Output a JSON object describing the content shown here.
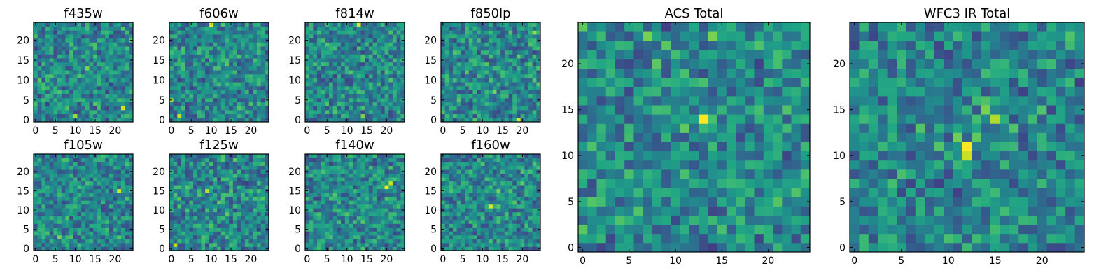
{
  "chart_data": [
    {
      "type": "heatmap",
      "title": "f435w",
      "xticks": [
        0,
        5,
        10,
        15,
        20
      ],
      "yticks": [
        0,
        5,
        10,
        15,
        20
      ],
      "xlim": [
        -0.5,
        24.5
      ],
      "ylim": [
        -0.5,
        24.5
      ],
      "grid_size": 25,
      "colormap": "viridis",
      "seed": 11,
      "peaks": [
        {
          "x": 22,
          "y": 3,
          "level": 0.95
        },
        {
          "x": 10,
          "y": 1,
          "level": 0.85
        },
        {
          "x": 13,
          "y": 13,
          "level": 0.8
        }
      ]
    },
    {
      "type": "heatmap",
      "title": "f606w",
      "xticks": [
        0,
        5,
        10,
        15,
        20
      ],
      "yticks": [
        0,
        5,
        10,
        15,
        20
      ],
      "xlim": [
        -0.5,
        24.5
      ],
      "ylim": [
        -0.5,
        24.5
      ],
      "grid_size": 25,
      "colormap": "viridis",
      "seed": 23,
      "peaks": [
        {
          "x": 10,
          "y": 24,
          "level": 0.95
        },
        {
          "x": 2,
          "y": 1,
          "level": 0.9
        },
        {
          "x": 0,
          "y": 5,
          "level": 0.85
        }
      ]
    },
    {
      "type": "heatmap",
      "title": "f814w",
      "xticks": [
        0,
        5,
        10,
        15,
        20
      ],
      "yticks": [
        0,
        5,
        10,
        15,
        20
      ],
      "xlim": [
        -0.5,
        24.5
      ],
      "ylim": [
        -0.5,
        24.5
      ],
      "grid_size": 25,
      "colormap": "viridis",
      "seed": 37,
      "peaks": [
        {
          "x": 13,
          "y": 24,
          "level": 0.95
        },
        {
          "x": 14,
          "y": 1,
          "level": 0.8
        }
      ]
    },
    {
      "type": "heatmap",
      "title": "f850lp",
      "xticks": [
        0,
        5,
        10,
        15,
        20
      ],
      "yticks": [
        0,
        5,
        10,
        15,
        20
      ],
      "xlim": [
        -0.5,
        24.5
      ],
      "ylim": [
        -0.5,
        24.5
      ],
      "grid_size": 25,
      "colormap": "viridis",
      "seed": 41,
      "peaks": [
        {
          "x": 19,
          "y": 0,
          "level": 0.95
        },
        {
          "x": 23,
          "y": 22,
          "level": 0.85
        },
        {
          "x": 13,
          "y": 7,
          "level": 0.8
        }
      ]
    },
    {
      "type": "heatmap",
      "title": "f105w",
      "xticks": [
        0,
        5,
        10,
        15,
        20
      ],
      "yticks": [
        0,
        5,
        10,
        15,
        20
      ],
      "xlim": [
        -0.5,
        24.5
      ],
      "ylim": [
        -0.5,
        24.5
      ],
      "grid_size": 25,
      "colormap": "viridis",
      "seed": 53,
      "peaks": [
        {
          "x": 21,
          "y": 15,
          "level": 0.95
        },
        {
          "x": 6,
          "y": 3,
          "level": 0.8
        }
      ]
    },
    {
      "type": "heatmap",
      "title": "f125w",
      "xticks": [
        0,
        5,
        10,
        15,
        20
      ],
      "yticks": [
        0,
        5,
        10,
        15,
        20
      ],
      "xlim": [
        -0.5,
        24.5
      ],
      "ylim": [
        -0.5,
        24.5
      ],
      "grid_size": 25,
      "colormap": "viridis",
      "seed": 67,
      "peaks": [
        {
          "x": 9,
          "y": 15,
          "level": 0.9
        },
        {
          "x": 1,
          "y": 1,
          "level": 0.9
        },
        {
          "x": 12,
          "y": 12,
          "level": 0.75
        }
      ]
    },
    {
      "type": "heatmap",
      "title": "f140w",
      "xticks": [
        0,
        5,
        10,
        15,
        20
      ],
      "yticks": [
        0,
        5,
        10,
        15,
        20
      ],
      "xlim": [
        -0.5,
        24.5
      ],
      "ylim": [
        -0.5,
        24.5
      ],
      "grid_size": 25,
      "colormap": "viridis",
      "seed": 71,
      "peaks": [
        {
          "x": 20,
          "y": 16,
          "level": 1.0
        },
        {
          "x": 21,
          "y": 17,
          "level": 0.9
        }
      ]
    },
    {
      "type": "heatmap",
      "title": "f160w",
      "xticks": [
        0,
        5,
        10,
        15,
        20
      ],
      "yticks": [
        0,
        5,
        10,
        15,
        20
      ],
      "xlim": [
        -0.5,
        24.5
      ],
      "ylim": [
        -0.5,
        24.5
      ],
      "grid_size": 25,
      "colormap": "viridis",
      "seed": 83,
      "peaks": [
        {
          "x": 12,
          "y": 11,
          "level": 0.95
        },
        {
          "x": 14,
          "y": 15,
          "level": 0.8
        },
        {
          "x": 20,
          "y": 17,
          "level": 0.75
        }
      ]
    },
    {
      "type": "heatmap",
      "title": "ACS Total",
      "xticks": [
        0,
        5,
        10,
        15,
        20
      ],
      "yticks": [
        0,
        5,
        10,
        15,
        20
      ],
      "xlim": [
        -0.5,
        24.5
      ],
      "ylim": [
        -0.5,
        24.5
      ],
      "grid_size": 25,
      "colormap": "viridis",
      "seed": 97,
      "peaks": [
        {
          "x": 13,
          "y": 14,
          "level": 1.0
        },
        {
          "x": 11,
          "y": 13,
          "level": 0.75
        },
        {
          "x": 7,
          "y": 23,
          "level": 0.8
        },
        {
          "x": 14,
          "y": 23,
          "level": 0.8
        },
        {
          "x": 19,
          "y": 22,
          "level": 0.72
        }
      ]
    },
    {
      "type": "heatmap",
      "title": "WFC3 IR Total",
      "xticks": [
        0,
        5,
        10,
        15,
        20
      ],
      "yticks": [
        0,
        5,
        10,
        15,
        20
      ],
      "xlim": [
        -0.5,
        24.5
      ],
      "ylim": [
        -0.5,
        24.5
      ],
      "grid_size": 25,
      "colormap": "viridis",
      "seed": 101,
      "peaks": [
        {
          "x": 12,
          "y": 11,
          "level": 1.0
        },
        {
          "x": 12,
          "y": 10,
          "level": 0.92
        },
        {
          "x": 15,
          "y": 14,
          "level": 0.88
        },
        {
          "x": 14,
          "y": 15,
          "level": 0.8
        },
        {
          "x": 11,
          "y": 12,
          "level": 0.78
        },
        {
          "x": 13,
          "y": 12,
          "level": 0.75
        }
      ]
    }
  ]
}
